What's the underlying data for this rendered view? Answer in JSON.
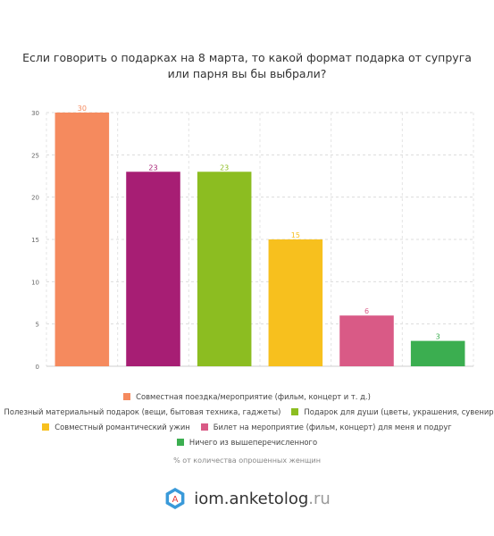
{
  "chart_data": {
    "type": "bar",
    "title": "Если говорить о подарках на 8 марта, то какой формат подарка от супруга или парня вы бы выбрали?",
    "xlabel": "",
    "ylabel": "",
    "footnote": "% от количества опрошенных женщин",
    "ylim": [
      0,
      30
    ],
    "yticks": [
      0,
      5,
      10,
      15,
      20,
      25,
      30
    ],
    "grid": true,
    "legend_position": "bottom",
    "categories": [
      "Совместная поездка/мероприятие (фильм, концерт и т. д.)",
      "Полезный материальный подарок (вещи, бытовая техника, гаджеты)",
      "Подарок для души (цветы, украшения, сувениры)",
      "Совместный романтический ужин",
      "Билет на мероприятие (фильм, концерт) для меня и подруг",
      "Ничего из вышеперечисленного"
    ],
    "values": [
      30,
      23,
      23,
      15,
      6,
      3
    ],
    "colors": [
      "#F58A5E",
      "#A71E74",
      "#8CBD21",
      "#F7C01E",
      "#D95A86",
      "#3BAE50"
    ]
  },
  "legend_rows": [
    [
      0
    ],
    [
      1,
      2
    ],
    [
      3,
      4
    ],
    [
      5
    ]
  ],
  "brand": {
    "name": "iom.anketolog",
    "tld": ".ru",
    "logo_letter": "A"
  }
}
